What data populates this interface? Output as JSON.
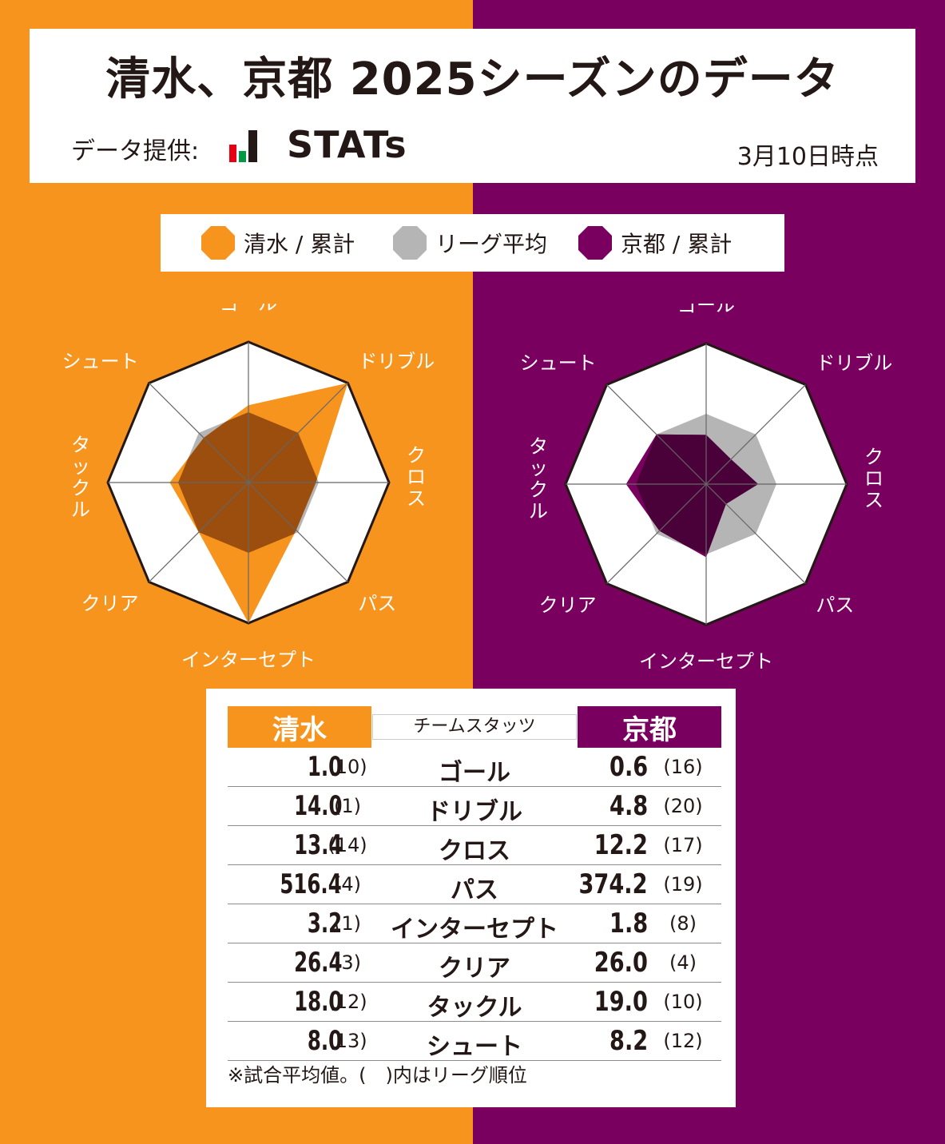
{
  "header": {
    "title": "清水、京都 2025シーズンのデータ",
    "provider_label": "データ提供:",
    "provider_name": "STATs",
    "as_of": "3月10日時点"
  },
  "legend": [
    {
      "label": "清水 / 累計",
      "color": "#F7941D"
    },
    {
      "label": "リーグ平均",
      "color": "#B5B5B5"
    },
    {
      "label": "京都 / 累計",
      "color": "#7A0060"
    }
  ],
  "colors": {
    "shimizu": "#F7941D",
    "kyoto": "#7A0060",
    "league": "#B5B5B5",
    "overlap_shimizu": "#9B4E0E",
    "overlap_kyoto": "#4A0038"
  },
  "chart_data": {
    "type": "radar",
    "axes": [
      "ゴール",
      "ドリブル",
      "クロス",
      "パス",
      "インターセプト",
      "クリア",
      "タックル",
      "シュート"
    ],
    "scale": [
      0,
      1
    ],
    "series": [
      {
        "name": "リーグ平均",
        "values": [
          0.5,
          0.5,
          0.5,
          0.5,
          0.5,
          0.5,
          0.5,
          0.5
        ]
      },
      {
        "name": "清水 / 累計",
        "values": [
          0.55,
          1.0,
          0.48,
          0.48,
          1.0,
          0.5,
          0.56,
          0.45
        ]
      },
      {
        "name": "京都 / 累計",
        "values": [
          0.35,
          0.25,
          0.37,
          0.2,
          0.52,
          0.47,
          0.57,
          0.5
        ]
      }
    ]
  },
  "table": {
    "left_header": "清水",
    "mid_header": "チームスタッツ",
    "right_header": "京都",
    "rows": [
      {
        "category": "ゴール",
        "left_value": "1.0",
        "left_rank": "(10)",
        "right_value": "0.6",
        "right_rank": "(16)"
      },
      {
        "category": "ドリブル",
        "left_value": "14.0",
        "left_rank": "(1)",
        "right_value": "4.8",
        "right_rank": "(20)"
      },
      {
        "category": "クロス",
        "left_value": "13.4",
        "left_rank": "(14)",
        "right_value": "12.2",
        "right_rank": "(17)"
      },
      {
        "category": "パス",
        "left_value": "516.4",
        "left_rank": "(4)",
        "right_value": "374.2",
        "right_rank": "(19)"
      },
      {
        "category": "インターセプト",
        "left_value": "3.2",
        "left_rank": "(1)",
        "right_value": "1.8",
        "right_rank": "(8)"
      },
      {
        "category": "クリア",
        "left_value": "26.4",
        "left_rank": "(3)",
        "right_value": "26.0",
        "right_rank": "(4)"
      },
      {
        "category": "タックル",
        "left_value": "18.0",
        "left_rank": "(12)",
        "right_value": "19.0",
        "right_rank": "(10)"
      },
      {
        "category": "シュート",
        "left_value": "8.0",
        "left_rank": "(13)",
        "right_value": "8.2",
        "right_rank": "(12)"
      }
    ],
    "note": "※試合平均値。(　)内はリーグ順位"
  }
}
